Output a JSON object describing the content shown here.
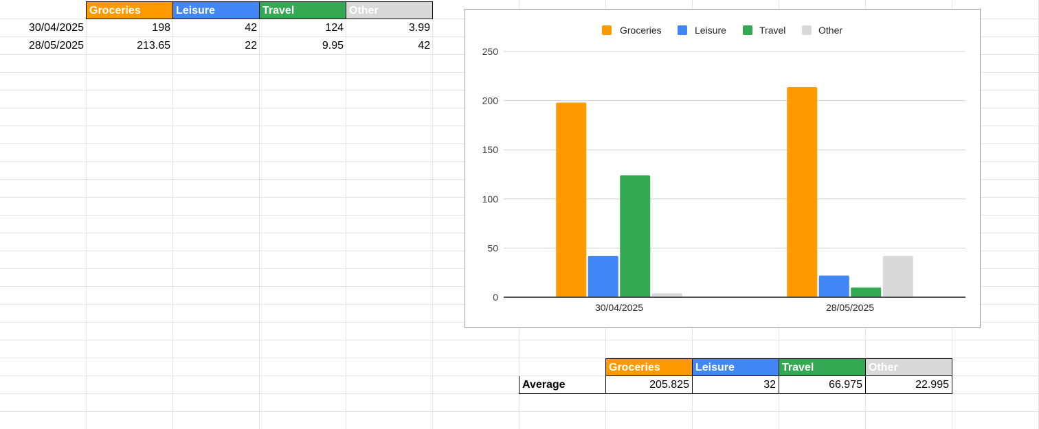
{
  "colors": {
    "groceries": "#ff9900",
    "leisure": "#4285f4",
    "travel": "#34a853",
    "other": "#d9d9d9"
  },
  "table": {
    "headers": [
      "Groceries",
      "Leisure",
      "Travel",
      "Other"
    ],
    "rows": [
      {
        "date": "30/04/2025",
        "values": [
          "198",
          "42",
          "124",
          "3.99"
        ]
      },
      {
        "date": "28/05/2025",
        "values": [
          "213.65",
          "22",
          "9.95",
          "42"
        ]
      }
    ]
  },
  "average_table": {
    "headers": [
      "Groceries",
      "Leisure",
      "Travel",
      "Other"
    ],
    "label": "Average",
    "values": [
      "205.825",
      "32",
      "66.975",
      "22.995"
    ]
  },
  "chart_data": {
    "type": "bar",
    "categories": [
      "30/04/2025",
      "28/05/2025"
    ],
    "series": [
      {
        "name": "Groceries",
        "values": [
          198,
          213.65
        ],
        "color": "#ff9900"
      },
      {
        "name": "Leisure",
        "values": [
          42,
          22
        ],
        "color": "#4285f4"
      },
      {
        "name": "Travel",
        "values": [
          124,
          9.95
        ],
        "color": "#34a853"
      },
      {
        "name": "Other",
        "values": [
          3.99,
          42
        ],
        "color": "#d9d9d9"
      }
    ],
    "title": "",
    "xlabel": "",
    "ylabel": "",
    "ylim": [
      0,
      250
    ],
    "yticks": [
      0,
      50,
      100,
      150,
      200,
      250
    ],
    "grid": true,
    "legend": "top"
  }
}
